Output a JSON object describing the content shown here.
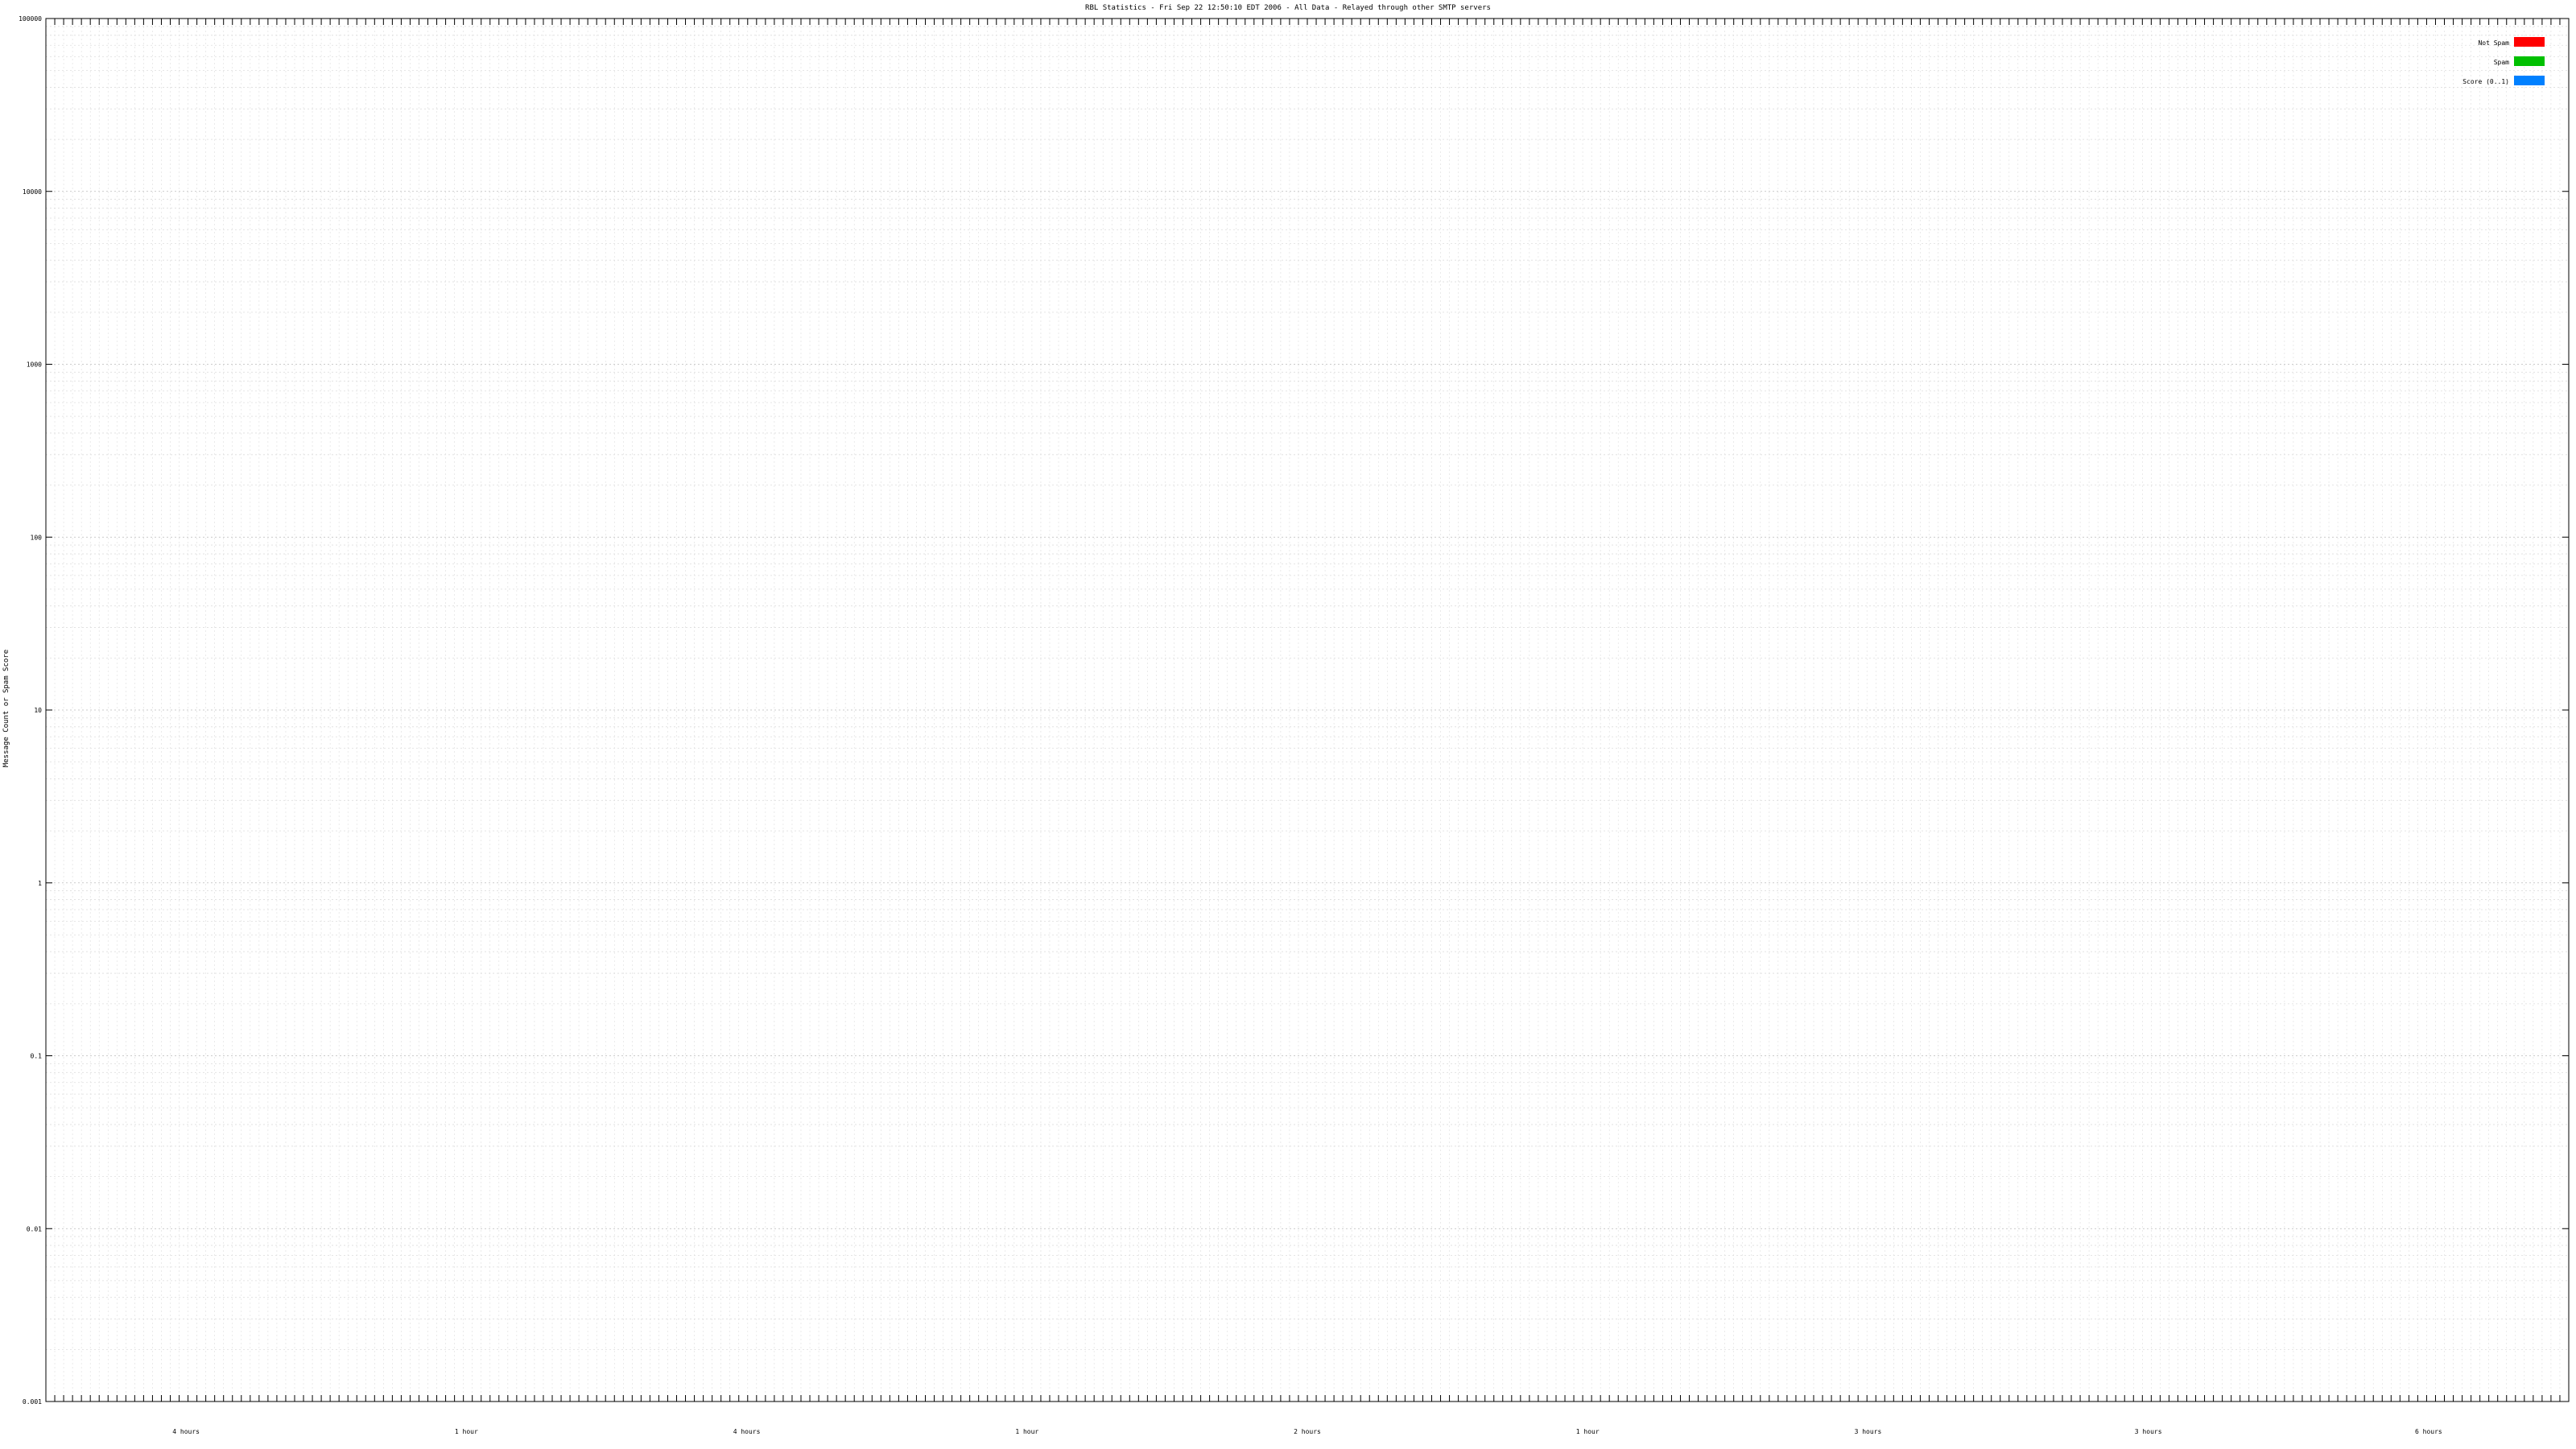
{
  "chart_data": {
    "type": "bar",
    "title": "RBL Statistics - Fri Sep 22 12:50:10 EDT 2006 - All Data - Relayed through other SMTP servers",
    "ylabel": "Message Count or Spam Score",
    "xlabel": "",
    "yscale": "log",
    "ylim": [
      0.001,
      100000
    ],
    "yticks": [
      {
        "value": 0.001,
        "label": "0.001"
      },
      {
        "value": 0.01,
        "label": "0.01"
      },
      {
        "value": 0.1,
        "label": "0.1"
      },
      {
        "value": 1,
        "label": "1"
      },
      {
        "value": 10,
        "label": "10"
      },
      {
        "value": 100,
        "label": "100"
      },
      {
        "value": 1000,
        "label": "1000"
      },
      {
        "value": 10000,
        "label": "10000"
      },
      {
        "value": 100000,
        "label": "100000"
      }
    ],
    "grid": true,
    "legend_position": "top-right",
    "legend": [
      {
        "label": "Not Spam",
        "color": "#ff0000"
      },
      {
        "label": "Spam",
        "color": "#00c000"
      },
      {
        "label": "Score (0..1)",
        "color": "#0080ff"
      }
    ],
    "x_tick_labels_legible": false,
    "group_labels": [
      "4 hours",
      "1 hour",
      "4 hours",
      "1 hour",
      "2 hours",
      "1 hour",
      "3 hours",
      "3 hours",
      "6 hours"
    ],
    "series": [
      {
        "name": "Not Spam",
        "color": "#ff0000",
        "values": [
          0,
          0,
          0,
          0,
          0,
          0,
          0,
          0,
          0,
          0,
          0,
          0,
          0,
          0,
          0,
          0,
          0,
          0,
          0,
          0,
          0,
          0,
          0,
          0,
          0,
          0,
          0,
          0,
          0,
          0,
          0,
          0,
          0,
          0,
          0,
          0,
          0,
          0,
          0,
          0,
          0,
          0,
          0,
          0,
          0,
          0,
          0,
          0,
          0,
          0,
          0,
          0,
          0,
          0,
          0,
          0,
          0,
          0,
          0,
          0,
          0,
          0,
          0,
          0,
          0,
          0,
          0,
          0,
          0,
          0,
          0,
          0,
          0,
          0,
          0,
          0,
          0,
          0,
          0,
          0,
          0,
          0,
          0,
          0,
          0,
          0,
          0,
          0,
          0,
          0,
          0,
          0,
          0,
          0,
          0,
          0,
          0,
          0,
          0,
          0,
          0,
          0,
          0,
          0,
          0,
          0,
          0,
          0,
          0,
          0,
          0,
          0,
          0,
          0,
          0,
          0,
          0,
          0,
          0,
          0,
          0,
          0,
          0,
          0,
          0,
          0,
          0,
          0,
          0,
          0,
          0,
          0,
          0,
          0,
          0,
          0,
          0,
          0,
          0,
          0,
          0,
          0,
          0,
          0,
          0,
          0,
          0,
          0,
          0,
          0,
          0,
          0,
          0,
          0,
          0,
          0,
          0,
          0,
          0,
          0,
          0,
          0,
          0,
          0,
          0,
          0,
          0,
          0,
          0,
          0,
          0,
          0,
          0,
          0,
          0,
          0,
          0,
          0,
          0,
          0,
          0,
          0,
          0,
          0,
          0,
          0,
          0,
          0,
          0,
          0,
          0,
          0,
          0,
          0,
          0,
          0,
          0,
          0,
          0,
          0,
          0,
          0,
          0,
          0,
          0,
          0,
          0,
          0,
          0,
          0,
          0,
          0,
          0,
          0,
          0,
          0,
          0,
          0,
          0,
          0,
          0,
          0,
          0,
          0,
          0,
          0,
          0,
          0,
          0,
          0,
          0,
          0,
          0,
          0,
          0,
          0,
          0,
          0,
          0,
          0,
          0,
          0,
          0,
          0,
          0,
          0,
          0,
          0,
          0,
          0,
          0,
          0,
          0,
          0,
          0,
          0,
          0,
          0,
          0,
          0,
          0,
          0,
          0,
          0,
          0,
          0,
          0,
          0,
          0,
          0,
          0,
          0,
          0,
          0,
          0,
          0,
          0,
          0,
          0,
          0,
          0,
          0,
          0,
          0
        ]
      },
      {
        "name": "Spam",
        "color": "#00c000",
        "values": []
      },
      {
        "name": "Score (0..1)",
        "color": "#0080ff",
        "values": []
      }
    ]
  }
}
